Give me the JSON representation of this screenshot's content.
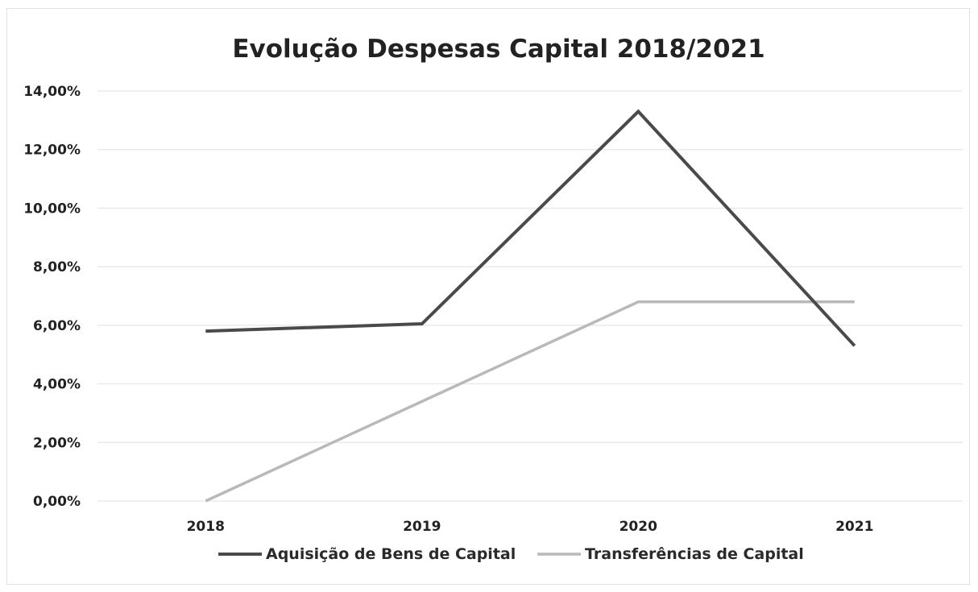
{
  "chart_data": {
    "type": "line",
    "title": "Evolução Despesas Capital 2018/2021",
    "categories": [
      "2018",
      "2019",
      "2020",
      "2021"
    ],
    "ylim": [
      0,
      14
    ],
    "y_ticks": [
      "0,00%",
      "2,00%",
      "4,00%",
      "6,00%",
      "8,00%",
      "10,00%",
      "12,00%",
      "14,00%"
    ],
    "grid": true,
    "legend_position": "bottom",
    "series": [
      {
        "name": "Aquisição de Bens de Capital",
        "values": [
          5.8,
          6.05,
          13.3,
          5.3
        ],
        "color": "#4a4a4a"
      },
      {
        "name": "Transferências de Capital",
        "values": [
          0.0,
          3.4,
          6.8,
          6.8
        ],
        "color": "#b9b9b9"
      }
    ]
  }
}
